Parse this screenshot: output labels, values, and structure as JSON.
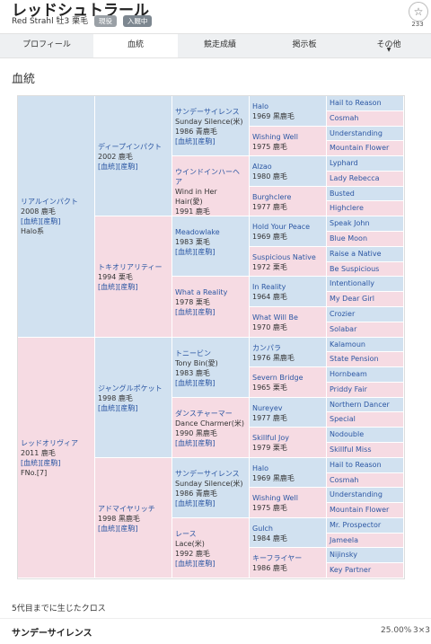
{
  "header": {
    "title": "レッドシュトラール",
    "subtitle": "Red Strahl 牡3 栗毛",
    "badge_status": "現役",
    "badge_registered": "入厩中",
    "favorite_count": "233"
  },
  "tabs": [
    {
      "label": "プロフィール"
    },
    {
      "label": "血統"
    },
    {
      "label": "競走成績"
    },
    {
      "label": "掲示板"
    },
    {
      "label": "その他"
    }
  ],
  "tab_more_symbol": "▼",
  "section_title": "血統",
  "pedigree": {
    "g1": [
      {
        "name": "リアルインパクト",
        "info": "2008 鹿毛",
        "links": "[血統][産駒]",
        "extra": "Halo系"
      },
      {
        "name": "レッドオリヴィア",
        "info": "2011 鹿毛",
        "links": "[血統][産駒]",
        "extra": "FNo.[7]"
      }
    ],
    "g2": [
      {
        "name": "ディープインパクト",
        "info": "2002 鹿毛",
        "links": "[血統][産駒]"
      },
      {
        "name": "トキオリアリティー",
        "info": "1994 栗毛",
        "links": "[血統][産駒]"
      },
      {
        "name": "ジャングルポケット",
        "info": "1998 鹿毛",
        "links": "[血統][産駒]"
      },
      {
        "name": "アドマイヤリッチ",
        "info": "1998 黒鹿毛",
        "links": "[血統][産駒]"
      }
    ],
    "g3": [
      {
        "name": "サンデーサイレンス",
        "en": "Sunday Silence(米)",
        "info": "1986 青鹿毛",
        "links": "[血統][産駒]"
      },
      {
        "name": "ウインドインハーヘア",
        "en": "Wind in Her Hair(愛)",
        "info": "1991 鹿毛",
        "links": "[血統][産駒]"
      },
      {
        "name": "Meadowlake",
        "en": "",
        "info": "1983 栗毛",
        "links": "[血統][産駒]"
      },
      {
        "name": "What a Reality",
        "en": "",
        "info": "1978 栗毛",
        "links": "[血統][産駒]"
      },
      {
        "name": "トニービン",
        "en": "Tony Bin(愛)",
        "info": "1983 鹿毛",
        "links": "[血統][産駒]"
      },
      {
        "name": "ダンスチャーマー",
        "en": "Dance Charmer(米)",
        "info": "1990 黒鹿毛",
        "links": "[血統][産駒]"
      },
      {
        "name": "サンデーサイレンス",
        "en": "Sunday Silence(米)",
        "info": "1986 青鹿毛",
        "links": "[血統][産駒]"
      },
      {
        "name": "レース",
        "en": "Lace(米)",
        "info": "1992 鹿毛",
        "links": "[血統][産駒]"
      }
    ],
    "g4": [
      {
        "name": "Halo",
        "info": "1969 黒鹿毛"
      },
      {
        "name": "Wishing Well",
        "info": "1975 鹿毛"
      },
      {
        "name": "Alzao",
        "info": "1980 鹿毛"
      },
      {
        "name": "Burghclere",
        "info": "1977 鹿毛"
      },
      {
        "name": "Hold Your Peace",
        "info": "1969 鹿毛"
      },
      {
        "name": "Suspicious Native",
        "info": "1972 栗毛"
      },
      {
        "name": "In Reality",
        "info": "1964 鹿毛"
      },
      {
        "name": "What Will Be",
        "info": "1970 鹿毛"
      },
      {
        "name": "カンパラ",
        "info": "1976 黒鹿毛"
      },
      {
        "name": "Severn Bridge",
        "info": "1965 栗毛"
      },
      {
        "name": "Nureyev",
        "info": "1977 鹿毛"
      },
      {
        "name": "Skillful Joy",
        "info": "1979 栗毛"
      },
      {
        "name": "Halo",
        "info": "1969 黒鹿毛"
      },
      {
        "name": "Wishing Well",
        "info": "1975 鹿毛"
      },
      {
        "name": "Gulch",
        "info": "1984 鹿毛"
      },
      {
        "name": "キーフライヤー",
        "info": "1986 鹿毛"
      }
    ],
    "g5": [
      "Hail to Reason",
      "Cosmah",
      "Understanding",
      "Mountain Flower",
      "Lyphard",
      "Lady Rebecca",
      "Busted",
      "Highclere",
      "Speak John",
      "Blue Moon",
      "Raise a Native",
      "Be Suspicious",
      "Intentionally",
      "My Dear Girl",
      "Crozier",
      "Solabar",
      "Kalamoun",
      "State Pension",
      "Hornbeam",
      "Priddy Fair",
      "Northern Dancer",
      "Special",
      "Nodouble",
      "Skillful Miss",
      "Hail to Reason",
      "Cosmah",
      "Understanding",
      "Mountain Flower",
      "Mr. Prospector",
      "Jameela",
      "Nijinsky",
      "Key Partner"
    ]
  },
  "cross": {
    "title": "5代目までに生じたクロス",
    "name": "サンデーサイレンス",
    "percent": "25.00%",
    "generation": "3×3"
  }
}
